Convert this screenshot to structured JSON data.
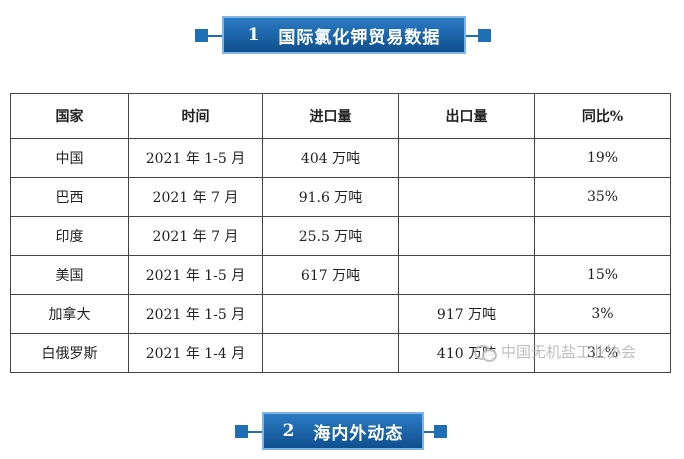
{
  "section1": {
    "number": "1",
    "title": "国际氯化钾贸易数据"
  },
  "section2": {
    "number": "2",
    "title": "海内外动态"
  },
  "table": {
    "headers": [
      "国家",
      "时间",
      "进口量",
      "出口量",
      "同比%"
    ],
    "rows": [
      [
        "中国",
        "2021 年 1-5 月",
        "404 万吨",
        "",
        "19%"
      ],
      [
        "巴西",
        "2021 年 7 月",
        "91.6 万吨",
        "",
        "35%"
      ],
      [
        "印度",
        "2021 年 7 月",
        "25.5 万吨",
        "",
        ""
      ],
      [
        "美国",
        "2021 年 1-5 月",
        "617 万吨",
        "",
        "15%"
      ],
      [
        "加拿大",
        "2021 年 1-5 月",
        "",
        "917 万吨",
        "3%"
      ],
      [
        "白俄罗斯",
        "2021 年 1-4 月",
        "",
        "410 万吨",
        "31%"
      ]
    ]
  },
  "watermark": {
    "text": "中国无机盐工业协会",
    "icon": "wechat-icon"
  },
  "colors": {
    "accent": "#1f6fb5",
    "banner_dark": "#0f4f8f"
  }
}
